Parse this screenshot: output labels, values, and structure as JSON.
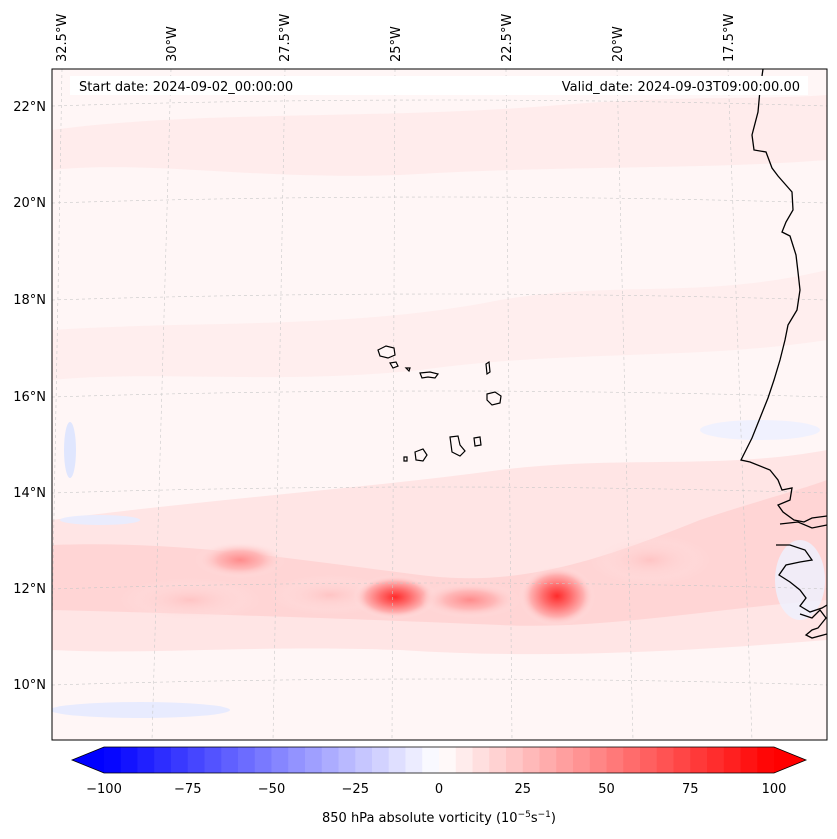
{
  "header": {
    "start_date": "Start date: 2024-09-02_00:00:00",
    "valid_date": "Valid_date: 2024-09-03T09:00:00.00"
  },
  "longitude_labels": [
    "32.5°W",
    "30°W",
    "27.5°W",
    "25°W",
    "22.5°W",
    "20°W",
    "17.5°W"
  ],
  "latitude_labels": [
    "22°N",
    "20°N",
    "18°N",
    "16°N",
    "14°N",
    "12°N",
    "10°N"
  ],
  "colorbar": {
    "label_prefix": "850 hPa absolute vorticity (10",
    "label_exp1": "−5",
    "label_mid": "s",
    "label_exp2": "−1",
    "label_suffix": ")",
    "ticks": [
      "−100",
      "−75",
      "−50",
      "−25",
      "0",
      "25",
      "50",
      "75",
      "100"
    ],
    "vmin": -100,
    "vmax": 100,
    "levels": 40,
    "min_color": "#0000ff",
    "max_color": "#ff0000"
  },
  "colors": {
    "coastline": "#000000",
    "gridline": "#c8c8c8",
    "background_field": "#fff5f5"
  }
}
